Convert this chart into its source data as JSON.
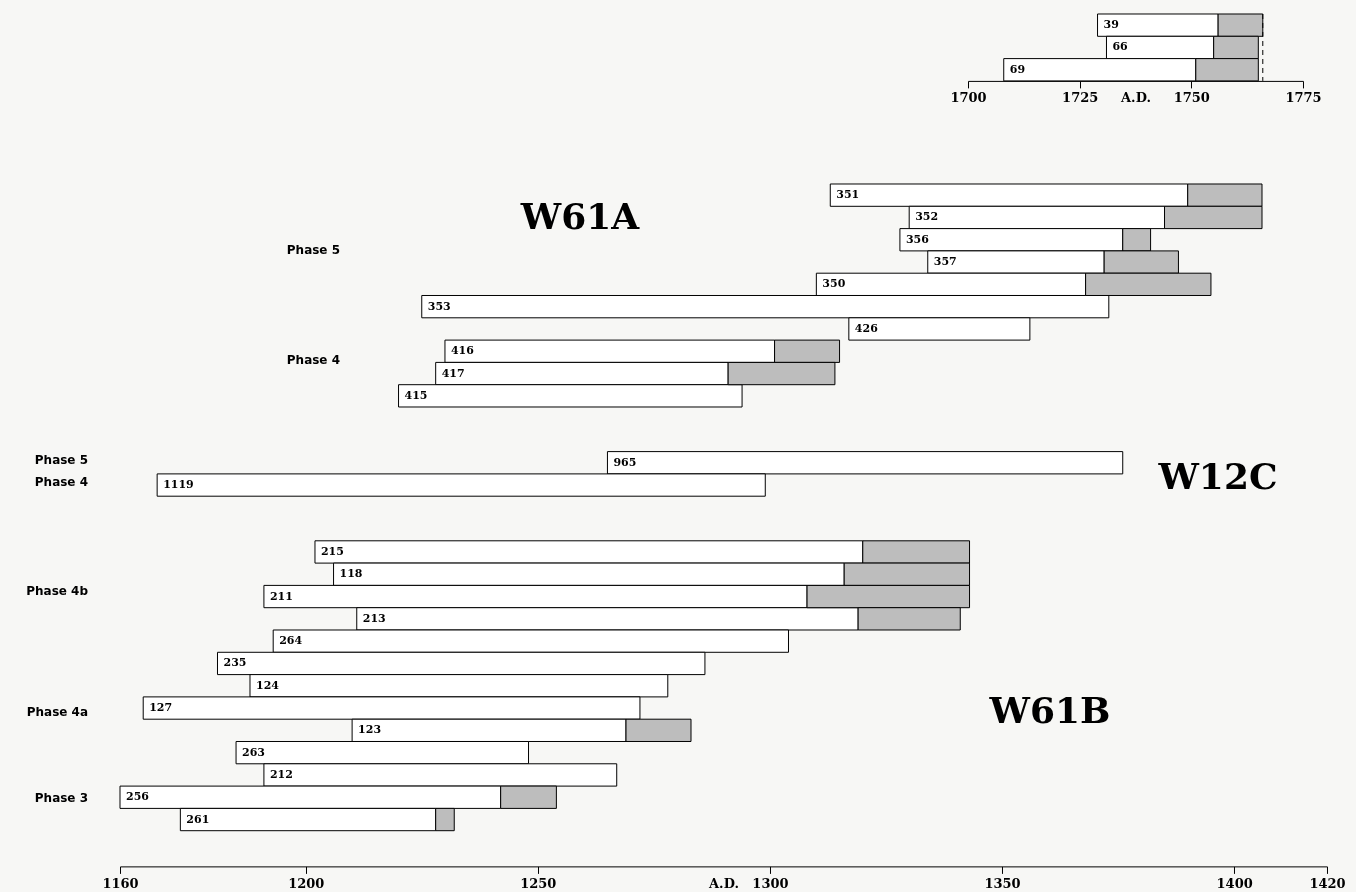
{
  "chart_data": [
    {
      "type": "bar",
      "orientation": "horizontal",
      "categories": [
        "39",
        "66",
        "69"
      ],
      "series": [
        {
          "color": "#ffffff",
          "base": [
            1729,
            1731,
            1708
          ],
          "values": [
            27,
            24,
            43
          ]
        },
        {
          "color": "#bdbdbd",
          "base": [
            1756,
            1755,
            1751
          ],
          "values": [
            10,
            10,
            14
          ]
        }
      ],
      "xlim": [
        1700,
        1775
      ],
      "xticks": [
        1700,
        1725,
        1750,
        1775
      ],
      "xlabel": "A.D.",
      "ref_lines": [
        {
          "axis": "x",
          "value": 1766,
          "line_style": "dashed",
          "color": "#000000"
        }
      ]
    },
    {
      "type": "bar",
      "orientation": "horizontal",
      "categories": [
        "351",
        "352",
        "356",
        "357",
        "350",
        "353",
        "426",
        "416",
        "417",
        "415",
        null,
        null,
        "965",
        "1119",
        null,
        null,
        "215",
        "118",
        "211",
        "213",
        "264",
        "235",
        "124",
        "127",
        "123",
        "263",
        "212",
        "256",
        "261"
      ],
      "series": [
        {
          "color": "#ffffff",
          "base": [
            1313,
            1330,
            1328,
            1334,
            1310,
            1225,
            1317,
            1230,
            1228,
            1220,
            null,
            null,
            1265,
            1168,
            null,
            null,
            1202,
            1206,
            1191,
            1211,
            1193,
            1181,
            1188,
            1165,
            1210,
            1185,
            1191,
            1160,
            1173
          ],
          "values": [
            77,
            55,
            48,
            38,
            58,
            148,
            39,
            71,
            63,
            74,
            null,
            null,
            111,
            131,
            null,
            null,
            118,
            110,
            117,
            108,
            111,
            105,
            90,
            107,
            59,
            63,
            76,
            82,
            55
          ]
        },
        {
          "color": "#bdbdbd",
          "base": [
            1390,
            1385,
            1376,
            1372,
            1368,
            null,
            null,
            1301,
            1291,
            null,
            null,
            null,
            null,
            null,
            null,
            null,
            1320,
            1316,
            1308,
            1319,
            null,
            null,
            null,
            null,
            1269,
            null,
            null,
            1242,
            1228
          ],
          "values": [
            16,
            21,
            6,
            16,
            27,
            null,
            null,
            14,
            23,
            null,
            null,
            null,
            null,
            null,
            null,
            null,
            23,
            27,
            35,
            22,
            null,
            null,
            null,
            null,
            14,
            null,
            null,
            12,
            4
          ]
        }
      ],
      "xlim": [
        1160,
        1420
      ],
      "xticks": [
        1160,
        1200,
        1250,
        1300,
        1350,
        1400,
        1420
      ],
      "xlabel": "A.D.",
      "annotations": [
        "W61A",
        "W12C",
        "W61B",
        "Phase 5",
        "Phase 4",
        "Phase 5",
        "Phase 4",
        "Phase 4b",
        "Phase 4a",
        "Phase 3"
      ]
    }
  ]
}
